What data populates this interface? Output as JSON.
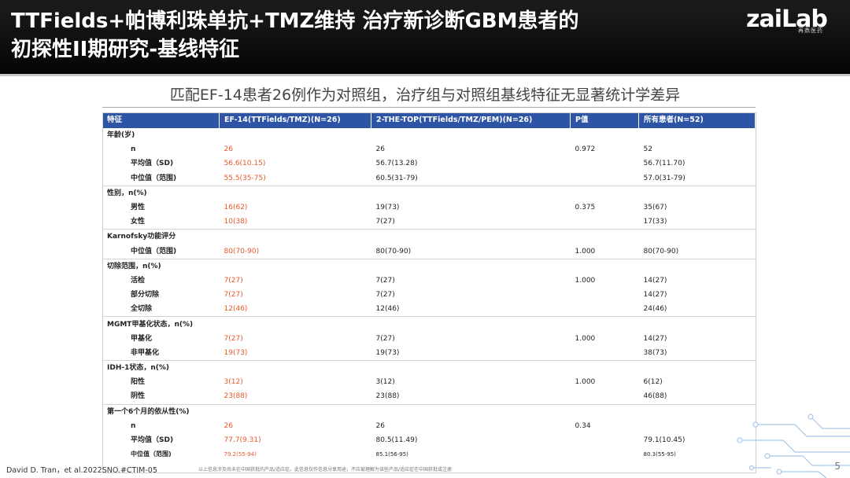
{
  "header": {
    "title_line1": "TTFields+帕博利珠单抗+TMZ维持 治疗新诊断GBM患者的",
    "title_line2": "初探性II期研究-基线特征",
    "logo_text": "zaiLab",
    "logo_subtext": "再鼎医药"
  },
  "subtitle": "匹配EF-14患者26例作为对照组，治疗组与对照组基线特征无显著统计学差异",
  "table": {
    "columns": [
      "特征",
      "EF-14(TTFields/TMZ)(N=26)",
      "2-THE-TOP(TTFields/TMZ/PEM)(N=26)",
      "P值",
      "所有患者(N=52)"
    ],
    "sections": [
      {
        "title": "年龄(岁)",
        "rows": [
          {
            "label": "n",
            "ef14": "26",
            "top": "26",
            "p": "0.972",
            "all": "52"
          },
          {
            "label": "平均值（SD)",
            "ef14": "56.6(10.15)",
            "top": "56.7(13.28)",
            "p": "",
            "all": "56.7(11.70)"
          },
          {
            "label": "中位值（范围)",
            "ef14": "55.5(35-75)",
            "top": "60.5(31-79)",
            "p": "",
            "all": "57.0(31-79)"
          }
        ]
      },
      {
        "title": "性别，n(%)",
        "rows": [
          {
            "label": "男性",
            "ef14": "16(62)",
            "top": "19(73)",
            "p": "0.375",
            "all": "35(67)"
          },
          {
            "label": "女性",
            "ef14": "10(38)",
            "top": "7(27)",
            "p": "",
            "all": "17(33)"
          }
        ]
      },
      {
        "title": "Karnofsky功能评分",
        "rows": [
          {
            "label": "中位值（范围)",
            "ef14": "80(70-90)",
            "top": "80(70-90)",
            "p": "1.000",
            "all": "80(70-90)"
          }
        ]
      },
      {
        "title": "切除范围，n(%)",
        "rows": [
          {
            "label": "活检",
            "ef14": "7(27)",
            "top": "7(27)",
            "p": "1.000",
            "all": "14(27)"
          },
          {
            "label": "部分切除",
            "ef14": "7(27)",
            "top": "7(27)",
            "p": "",
            "all": "14(27)"
          },
          {
            "label": "全切除",
            "ef14": "12(46)",
            "top": "12(46)",
            "p": "",
            "all": "24(46)"
          }
        ]
      },
      {
        "title": "MGMT甲基化状态，n(%)",
        "rows": [
          {
            "label": "甲基化",
            "ef14": "7(27)",
            "top": "7(27)",
            "p": "1.000",
            "all": "14(27)"
          },
          {
            "label": "非甲基化",
            "ef14": "19(73)",
            "top": "19(73)",
            "p": "",
            "all": "38(73)"
          }
        ]
      },
      {
        "title": "IDH-1状态，n(%)",
        "rows": [
          {
            "label": "阳性",
            "ef14": "3(12)",
            "top": "3(12)",
            "p": "1.000",
            "all": "6(12)"
          },
          {
            "label": "阴性",
            "ef14": "23(88)",
            "top": "23(88)",
            "p": "",
            "all": "46(88)"
          }
        ]
      },
      {
        "title": "第一个6个月的依从性(%)",
        "rows": [
          {
            "label": "n",
            "ef14": "26",
            "top": "26",
            "p": "0.34",
            "all": ""
          },
          {
            "label": "平均值（SD)",
            "ef14": "77.7(9.31)",
            "top": "80.5(11.49)",
            "p": "",
            "all": "79.1(10.45)"
          },
          {
            "label": "中位值（范围)",
            "ef14": "79.2(55-94)",
            "top": "85.1(56-95)",
            "p": "",
            "all": "80.3(55-95)"
          }
        ]
      }
    ]
  },
  "footer": {
    "citation": "David D. Tran，et al.2022SNO.#CTIM-05",
    "disclaimer": "以上信息涉及尚未在中国获批的产品/适应症。此信息仅作信息分享用途，不应被理解为该些产品/适应症在中国获批或注册",
    "page_number": "5"
  },
  "colors": {
    "header_bg": "#0a0a0a",
    "table_header_bg": "#2e54a6",
    "ef14_value_color": "#e8572a",
    "circuit_color": "#a9c6e6"
  },
  "icons": {
    "logo": "zailab-logo",
    "decoration": "circuit-decoration"
  }
}
